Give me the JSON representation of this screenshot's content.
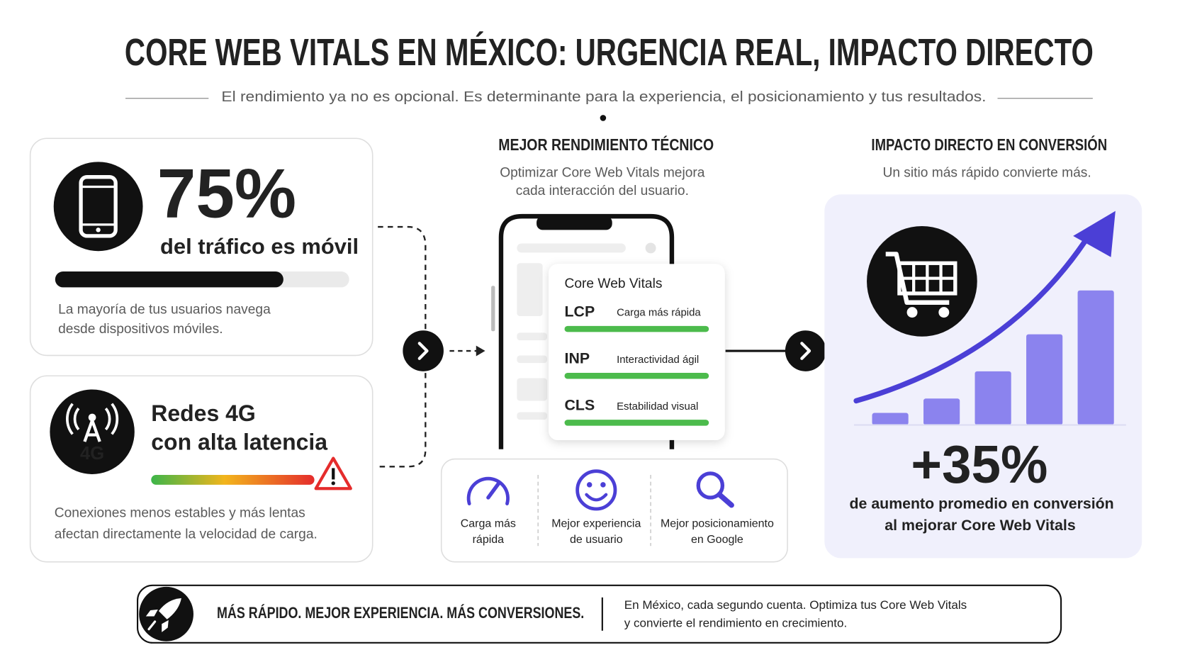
{
  "header": {
    "title": "CORE WEB VITALS EN MÉXICO: URGENCIA REAL, IMPACTO DIRECTO",
    "subtitle": "El rendimiento ya no es opcional. Es determinante para la experiencia, el posicionamiento y tus resultados."
  },
  "left": {
    "mobile": {
      "stat": "75%",
      "label": "del tráfico es móvil",
      "description": [
        "La mayoría de tus usuarios navega",
        "desde dispositivos móviles."
      ]
    },
    "network": {
      "icon_label": "4G",
      "title": [
        "Redes 4G",
        "con alta latencia"
      ],
      "description": [
        "Conexiones menos estables y más lentas",
        "afectan directamente la velocidad de carga."
      ]
    }
  },
  "center": {
    "heading": "MEJOR RENDIMIENTO TÉCNICO",
    "description": [
      "Optimizar Core Web Vitals mejora",
      "cada interacción del usuario."
    ],
    "card_title": "Core Web Vitals",
    "metrics": [
      {
        "name": "LCP",
        "label": "Carga más rápida"
      },
      {
        "name": "INP",
        "label": "Interactividad ágil"
      },
      {
        "name": "CLS",
        "label": "Estabilidad visual"
      }
    ],
    "benefits": [
      [
        "Carga más",
        "rápida"
      ],
      [
        "Mejor experiencia",
        "de usuario"
      ],
      [
        "Mejor posicionamiento",
        "en Google"
      ]
    ]
  },
  "right": {
    "heading": "IMPACTO DIRECTO EN CONVERSIÓN",
    "description": "Un sitio más rápido convierte más.",
    "stat": "+35%",
    "label": [
      "de aumento promedio en conversión",
      "al mejorar Core Web Vitals"
    ]
  },
  "footer": {
    "tagline": "MÁS RÁPIDO. MEJOR EXPERIENCIA. MÁS CONVERSIONES.",
    "message": [
      "En México, cada segundo cuenta. Optimiza tus Core Web Vitals",
      "y convierte el rendimiento en crecimiento."
    ]
  }
}
